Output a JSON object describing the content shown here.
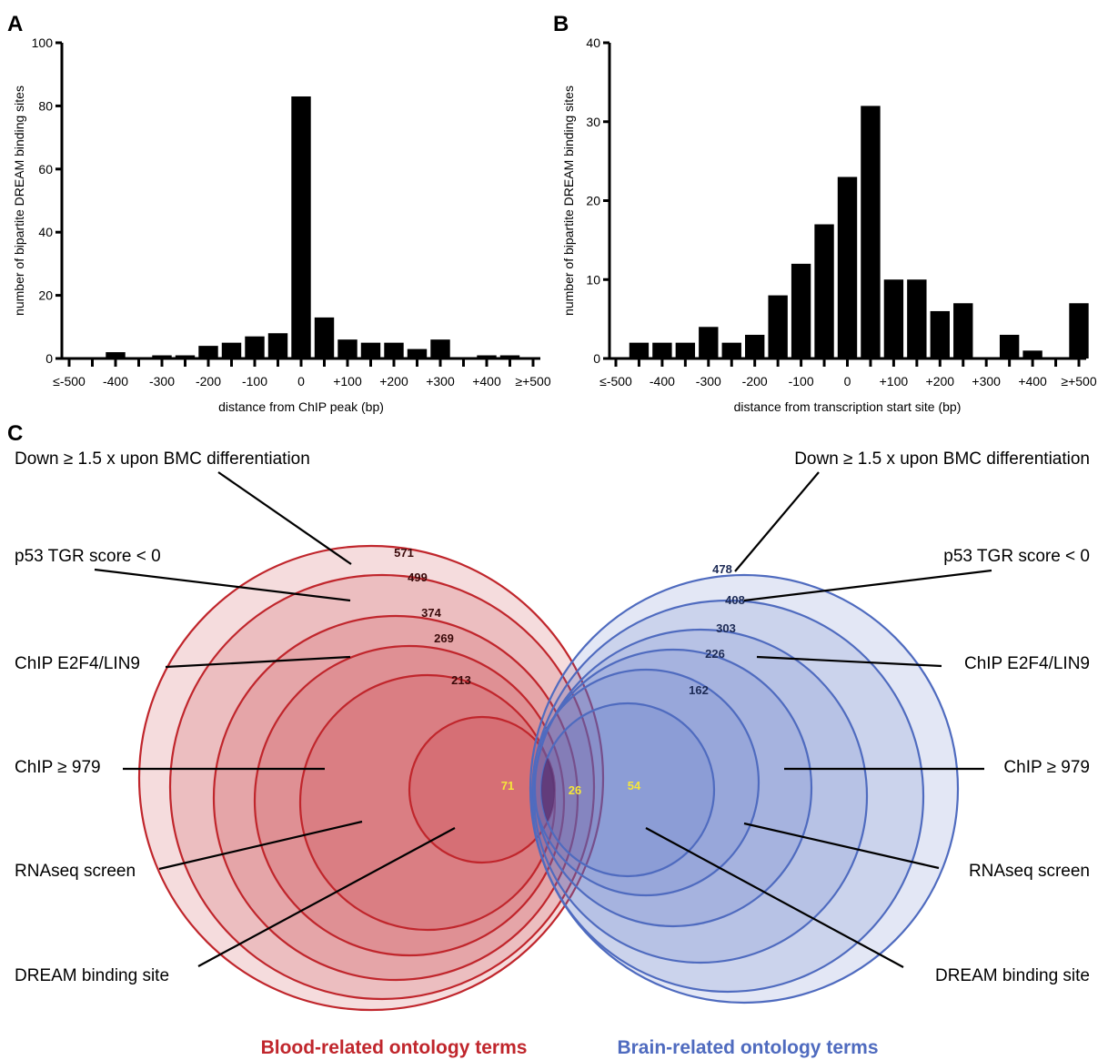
{
  "panels": {
    "a": "A",
    "b": "B",
    "c": "C"
  },
  "chart_data": [
    {
      "type": "bar",
      "panel": "A",
      "ylabel": "number of bipartite DREAM binding sites",
      "xlabel": "distance from ChIP peak (bp)",
      "ylim": [
        0,
        100
      ],
      "yticks": [
        "0",
        "20",
        "40",
        "60",
        "80",
        "100"
      ],
      "xtick_labels": [
        "≤-500",
        "-400",
        "-300",
        "-200",
        "-100",
        "0",
        "+100",
        "+200",
        "+300",
        "+400",
        "≥+500"
      ],
      "x_range": [
        -500,
        500
      ],
      "bin_centers": [
        -500,
        -450,
        -400,
        -350,
        -300,
        -250,
        -200,
        -150,
        -100,
        -50,
        0,
        50,
        100,
        150,
        200,
        250,
        300,
        350,
        400,
        450,
        500
      ],
      "values": [
        0,
        0,
        2,
        0,
        1,
        1,
        4,
        5,
        7,
        8,
        83,
        13,
        6,
        5,
        5,
        3,
        6,
        0,
        1,
        1,
        0
      ]
    },
    {
      "type": "bar",
      "panel": "B",
      "ylabel": "number of bipartite DREAM binding sites",
      "xlabel": "distance from transcription start site (bp)",
      "ylim": [
        0,
        40
      ],
      "yticks": [
        "0",
        "10",
        "20",
        "30",
        "40"
      ],
      "xtick_labels": [
        "≤-500",
        "-400",
        "-300",
        "-200",
        "-100",
        "0",
        "+100",
        "+200",
        "+300",
        "+400",
        "≥+500"
      ],
      "x_range": [
        -500,
        500
      ],
      "bin_centers": [
        -500,
        -450,
        -400,
        -350,
        -300,
        -250,
        -200,
        -150,
        -100,
        -50,
        0,
        50,
        100,
        150,
        200,
        250,
        300,
        350,
        400,
        450,
        500
      ],
      "values": [
        0,
        2,
        2,
        2,
        4,
        2,
        3,
        8,
        12,
        17,
        23,
        32,
        10,
        10,
        6,
        7,
        0,
        3,
        1,
        0,
        7
      ]
    },
    {
      "type": "venn",
      "panel": "C",
      "layers": [
        "Down ≥ 1.5 x upon BMC differentiation",
        "p53 TGR score < 0",
        "ChIP E2F4/LIN9",
        "ChIP ≥ 979",
        "RNAseq screen",
        "DREAM binding site"
      ],
      "sets": [
        {
          "name": "Blood-related ontology terms",
          "color": "#c0262c",
          "counts": [
            "571",
            "499",
            "374",
            "269",
            "213",
            "71"
          ],
          "labels": [
            "Down ≥ 1.5 x upon BMC differentiation",
            "p53 TGR score < 0",
            "ChIP E2F4/LIN9",
            "ChIP ≥ 979",
            "RNAseq screen",
            "DREAM binding site"
          ]
        },
        {
          "name": "Brain-related ontology terms",
          "color": "#4f6bbf",
          "counts": [
            "478",
            "408",
            "303",
            "226",
            "162",
            "54"
          ],
          "labels": [
            "Down ≥ 1.5 x upon BMC differentiation",
            "p53 TGR score < 0",
            "ChIP E2F4/LIN9",
            "ChIP ≥ 979",
            "RNAseq screen",
            "DREAM binding site"
          ]
        }
      ],
      "intersection": "26",
      "count_color_inner": "#f5e63a"
    }
  ]
}
